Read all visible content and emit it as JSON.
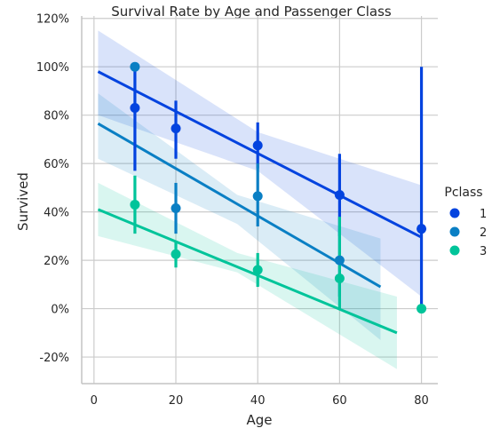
{
  "chart_data": {
    "type": "scatter",
    "title": "Survival Rate by Age and Passenger Class",
    "xlabel": "Age",
    "ylabel": "Survived",
    "xlim": [
      -3,
      84
    ],
    "ylim": [
      -31,
      121
    ],
    "xticks": [
      0,
      20,
      40,
      60,
      80
    ],
    "yticks": [
      -20,
      0,
      20,
      40,
      60,
      80,
      100,
      120
    ],
    "ytick_suffix": "%",
    "grid": true,
    "legend": {
      "title": "Pclass",
      "placement": "right"
    },
    "series": [
      {
        "name": "1",
        "color": "#0343df",
        "points": [
          {
            "x": 10,
            "y": 83,
            "lo": 57,
            "hi": 100
          },
          {
            "x": 20,
            "y": 74.5,
            "lo": 62,
            "hi": 86
          },
          {
            "x": 40,
            "y": 67.5,
            "lo": 58,
            "hi": 77
          },
          {
            "x": 60,
            "y": 47,
            "lo": 30,
            "hi": 64
          },
          {
            "x": 80,
            "y": 33,
            "lo": 0,
            "hi": 100
          }
        ],
        "fit": {
          "x0": 1,
          "y0": 98,
          "x1": 80,
          "y1": 29.5
        },
        "band": {
          "x": [
            1,
            40,
            80
          ],
          "lo": [
            80,
            57,
            5
          ],
          "hi": [
            115,
            73,
            51
          ]
        }
      },
      {
        "name": "2",
        "color": "#0a7fc4",
        "points": [
          {
            "x": 10,
            "y": 100,
            "lo": 100,
            "hi": 100
          },
          {
            "x": 20,
            "y": 41.5,
            "lo": 31,
            "hi": 52
          },
          {
            "x": 40,
            "y": 46.5,
            "lo": 34,
            "hi": 60
          },
          {
            "x": 60,
            "y": 20,
            "lo": 5,
            "hi": 33
          }
        ],
        "fit": {
          "x0": 1,
          "y0": 76.5,
          "x1": 70,
          "y1": 9
        },
        "band": {
          "x": [
            1,
            35,
            70
          ],
          "lo": [
            62,
            35,
            -13
          ],
          "hi": [
            89,
            47,
            29
          ]
        }
      },
      {
        "name": "3",
        "color": "#00c49a",
        "points": [
          {
            "x": 10,
            "y": 43,
            "lo": 31,
            "hi": 55
          },
          {
            "x": 20,
            "y": 22.5,
            "lo": 17,
            "hi": 28
          },
          {
            "x": 40,
            "y": 16,
            "lo": 9,
            "hi": 23
          },
          {
            "x": 60,
            "y": 12.5,
            "lo": 0,
            "hi": 38
          },
          {
            "x": 80,
            "y": 0,
            "lo": 0,
            "hi": 0
          }
        ],
        "fit": {
          "x0": 1,
          "y0": 41,
          "x1": 74,
          "y1": -10
        },
        "band": {
          "x": [
            1,
            35,
            74
          ],
          "lo": [
            30,
            15,
            -25
          ],
          "hi": [
            52,
            23,
            5
          ]
        }
      }
    ]
  }
}
